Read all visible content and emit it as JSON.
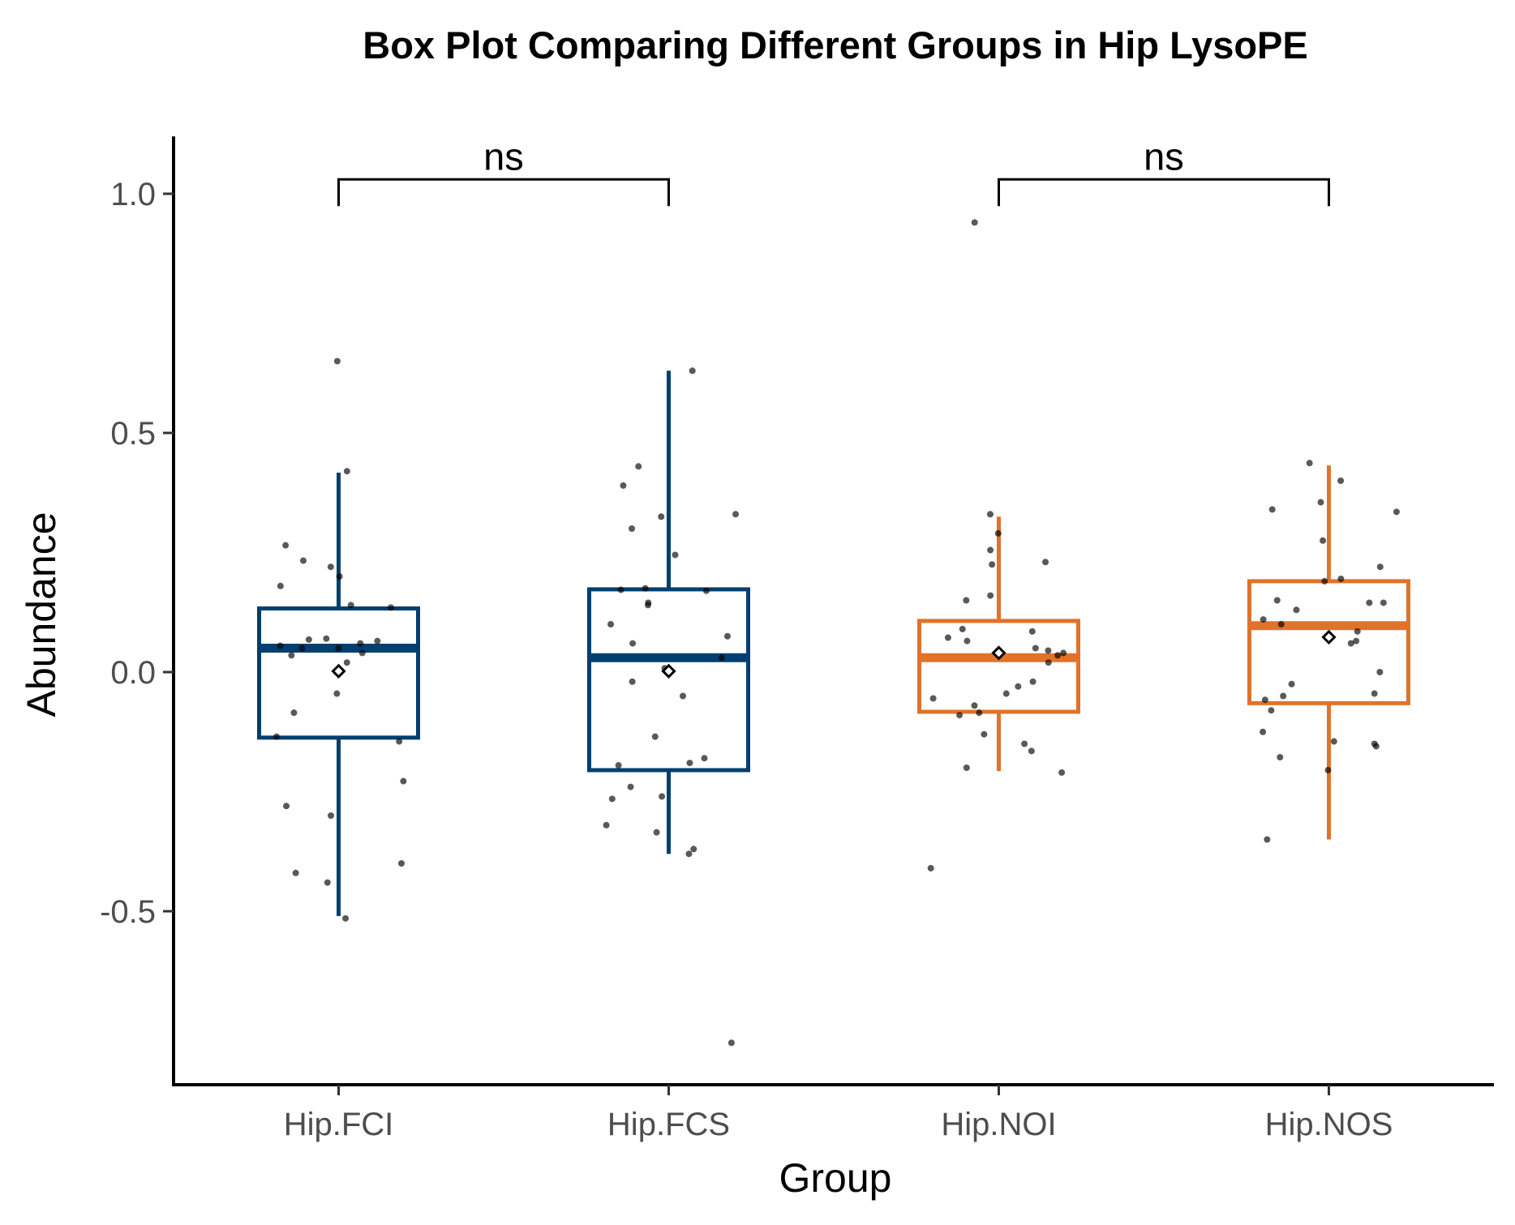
{
  "chart_data": {
    "type": "box",
    "title": "Box Plot Comparing Different Groups in Hip LysoPE",
    "xlabel": "Group",
    "ylabel": "Abundance",
    "categories": [
      "Hip.FCI",
      "Hip.FCS",
      "Hip.NOI",
      "Hip.NOS"
    ],
    "ylim": [
      -0.85,
      1.12
    ],
    "y_ticks": [
      -0.5,
      0.0,
      0.5,
      1.0
    ],
    "y_tick_labels": [
      "-0.5",
      "0.0",
      "0.5",
      "1.0"
    ],
    "grid": false,
    "legend": "none",
    "boxes": [
      {
        "group": "Hip.FCI",
        "color": "#003f6f",
        "whisker_low": -0.51,
        "q1": -0.137,
        "median": 0.05,
        "q3": 0.133,
        "whisker_high": 0.417,
        "mean": 0.002
      },
      {
        "group": "Hip.FCS",
        "color": "#003f6f",
        "whisker_low": -0.38,
        "q1": -0.205,
        "median": 0.03,
        "q3": 0.173,
        "whisker_high": 0.63,
        "mean": 0.002
      },
      {
        "group": "Hip.NOI",
        "color": "#e0732a",
        "whisker_low": -0.207,
        "q1": -0.083,
        "median": 0.03,
        "q3": 0.107,
        "whisker_high": 0.325,
        "mean": 0.04
      },
      {
        "group": "Hip.NOS",
        "color": "#e0732a",
        "whisker_low": -0.35,
        "q1": -0.065,
        "median": 0.097,
        "q3": 0.19,
        "whisker_high": 0.432,
        "mean": 0.073
      }
    ],
    "points": [
      {
        "group": "Hip.FCI",
        "values": [
          0.65,
          0.42,
          0.265,
          0.233,
          0.22,
          0.2,
          0.18,
          0.135,
          0.14,
          0.07,
          0.068,
          0.065,
          0.06,
          0.055,
          0.05,
          0.05,
          0.04,
          0.035,
          0.02,
          -0.045,
          -0.085,
          -0.135,
          -0.145,
          -0.228,
          -0.28,
          -0.3,
          -0.4,
          -0.42,
          -0.44,
          -0.515
        ]
      },
      {
        "group": "Hip.FCS",
        "values": [
          0.63,
          0.43,
          0.39,
          0.33,
          0.325,
          0.3,
          0.245,
          0.175,
          0.172,
          0.17,
          0.145,
          0.14,
          0.1,
          0.075,
          0.06,
          0.03,
          0.008,
          -0.02,
          -0.05,
          -0.135,
          -0.18,
          -0.19,
          -0.195,
          -0.24,
          -0.26,
          -0.265,
          -0.32,
          -0.335,
          -0.37,
          -0.38,
          -0.775
        ]
      },
      {
        "group": "Hip.NOI",
        "values": [
          0.94,
          0.33,
          0.29,
          0.255,
          0.23,
          0.225,
          0.16,
          0.15,
          0.09,
          0.085,
          0.072,
          0.065,
          0.05,
          0.045,
          0.04,
          0.035,
          0.02,
          -0.02,
          -0.03,
          -0.045,
          -0.055,
          -0.07,
          -0.085,
          -0.09,
          -0.13,
          -0.15,
          -0.165,
          -0.2,
          -0.21,
          -0.41
        ]
      },
      {
        "group": "Hip.NOS",
        "values": [
          0.437,
          0.4,
          0.355,
          0.34,
          0.335,
          0.275,
          0.22,
          0.195,
          0.19,
          0.15,
          0.145,
          0.145,
          0.13,
          0.11,
          0.1,
          0.085,
          0.065,
          0.06,
          0.0,
          -0.025,
          -0.045,
          -0.05,
          -0.058,
          -0.08,
          -0.125,
          -0.145,
          -0.15,
          -0.155,
          -0.178,
          -0.205,
          -0.35
        ]
      }
    ],
    "comparisons": [
      {
        "groups": [
          "Hip.FCI",
          "Hip.FCS"
        ],
        "label": "ns",
        "y": 1.03
      },
      {
        "groups": [
          "Hip.NOI",
          "Hip.NOS"
        ],
        "label": "ns",
        "y": 1.03
      }
    ]
  }
}
